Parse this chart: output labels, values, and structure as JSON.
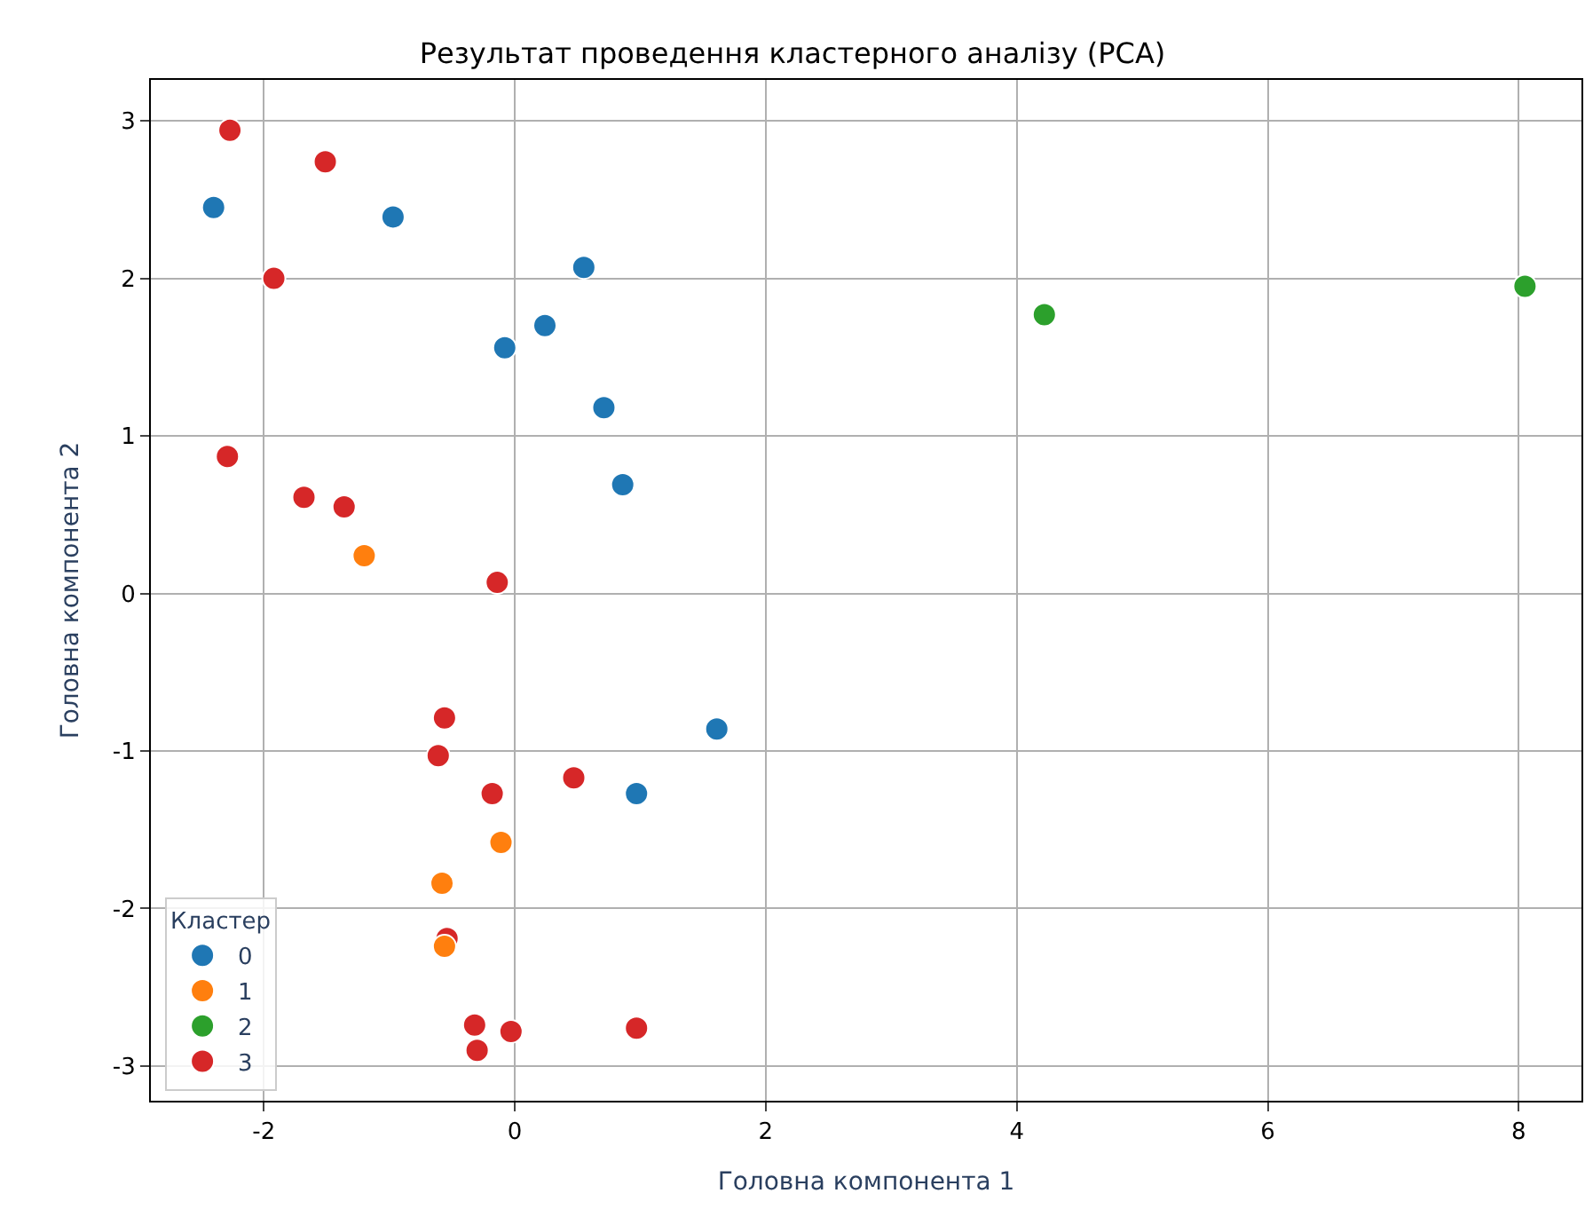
{
  "chart_data": {
    "type": "scatter",
    "title": "Результат проведення кластерного аналізу (PCA)",
    "xlabel": "Головна компонента 1",
    "ylabel": "Головна компонента 2",
    "legend_title": "Кластер",
    "xlim": [
      -2.9,
      8.5
    ],
    "ylim": [
      -3.22,
      3.26
    ],
    "xticks": [
      -2,
      0,
      2,
      4,
      6,
      8
    ],
    "yticks": [
      -3,
      -2,
      -1,
      0,
      1,
      2,
      3
    ],
    "grid": true,
    "legend": "bottom left",
    "marker": "circle",
    "series": [
      {
        "name": "0",
        "color": "#1f77b4",
        "x": [
          -2.4,
          -0.97,
          0.55,
          0.24,
          -0.08,
          0.71,
          0.86,
          1.61,
          0.97
        ],
        "values": [
          2.45,
          2.39,
          2.07,
          1.7,
          1.56,
          1.18,
          0.69,
          -0.86,
          -1.27
        ]
      },
      {
        "name": "1",
        "color": "#ff7f0e",
        "x": [
          -1.2,
          -0.11,
          -0.58,
          -0.56
        ],
        "values": [
          0.24,
          -1.58,
          -1.84,
          -2.24
        ]
      },
      {
        "name": "2",
        "color": "#2ca02c",
        "x": [
          4.22,
          8.05
        ],
        "values": [
          1.77,
          1.95
        ]
      },
      {
        "name": "3",
        "color": "#d62728",
        "x": [
          -2.27,
          -1.51,
          -1.92,
          -2.29,
          -1.68,
          -1.36,
          -0.14,
          -0.56,
          -0.61,
          -0.18,
          0.47,
          -0.54,
          -0.32,
          -0.3,
          -0.03,
          0.97
        ],
        "values": [
          2.94,
          2.74,
          2.0,
          0.87,
          0.61,
          0.55,
          0.07,
          -0.79,
          -1.03,
          -1.27,
          -1.17,
          -2.19,
          -2.74,
          -2.9,
          -2.78,
          -2.76
        ]
      }
    ]
  }
}
